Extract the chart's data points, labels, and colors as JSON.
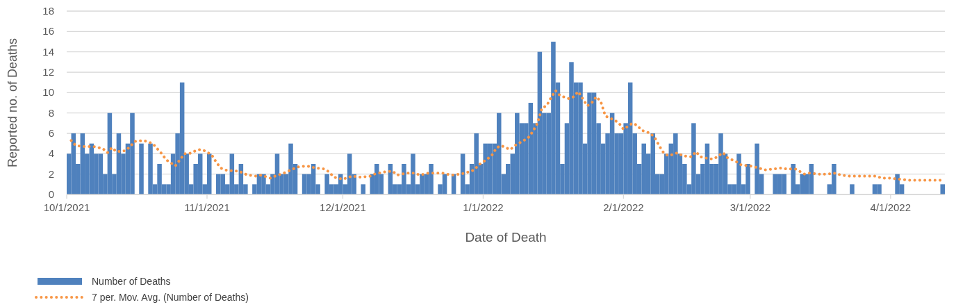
{
  "chart_data": {
    "type": "bar",
    "xlabel": "Date of Death",
    "ylabel": "Reported no. of Deaths",
    "xlim": [
      "2021-10-01",
      "2022-04-13"
    ],
    "xticks": [
      {
        "value": "2021-10-01",
        "label": "10/1/2021"
      },
      {
        "value": "2021-11-01",
        "label": "11/1/2021"
      },
      {
        "value": "2021-12-01",
        "label": "12/1/2021"
      },
      {
        "value": "2022-01-01",
        "label": "1/1/2022"
      },
      {
        "value": "2022-02-01",
        "label": "2/1/2022"
      },
      {
        "value": "2022-03-01",
        "label": "3/1/2022"
      },
      {
        "value": "2022-04-01",
        "label": "4/1/2022"
      }
    ],
    "ylim": [
      0,
      18
    ],
    "yticks": [
      0,
      2,
      4,
      6,
      8,
      10,
      12,
      14,
      16,
      18
    ],
    "grid": "y",
    "legend": "bottom",
    "series": [
      {
        "name": "Number of Deaths",
        "type": "bar",
        "color": "#4f81bd",
        "x": [
          "2021-10-01",
          "2021-10-02",
          "2021-10-03",
          "2021-10-04",
          "2021-10-05",
          "2021-10-06",
          "2021-10-07",
          "2021-10-08",
          "2021-10-09",
          "2021-10-10",
          "2021-10-11",
          "2021-10-12",
          "2021-10-13",
          "2021-10-14",
          "2021-10-15",
          "2021-10-16",
          "2021-10-17",
          "2021-10-18",
          "2021-10-19",
          "2021-10-20",
          "2021-10-21",
          "2021-10-22",
          "2021-10-23",
          "2021-10-24",
          "2021-10-25",
          "2021-10-26",
          "2021-10-27",
          "2021-10-28",
          "2021-10-29",
          "2021-10-30",
          "2021-10-31",
          "2021-11-01",
          "2021-11-02",
          "2021-11-03",
          "2021-11-04",
          "2021-11-05",
          "2021-11-06",
          "2021-11-07",
          "2021-11-08",
          "2021-11-09",
          "2021-11-10",
          "2021-11-11",
          "2021-11-12",
          "2021-11-13",
          "2021-11-14",
          "2021-11-15",
          "2021-11-16",
          "2021-11-17",
          "2021-11-18",
          "2021-11-19",
          "2021-11-20",
          "2021-11-21",
          "2021-11-22",
          "2021-11-23",
          "2021-11-24",
          "2021-11-25",
          "2021-11-26",
          "2021-11-27",
          "2021-11-28",
          "2021-11-29",
          "2021-11-30",
          "2021-12-01",
          "2021-12-02",
          "2021-12-03",
          "2021-12-04",
          "2021-12-05",
          "2021-12-06",
          "2021-12-07",
          "2021-12-08",
          "2021-12-09",
          "2021-12-10",
          "2021-12-11",
          "2021-12-12",
          "2021-12-13",
          "2021-12-14",
          "2021-12-15",
          "2021-12-16",
          "2021-12-17",
          "2021-12-18",
          "2021-12-19",
          "2021-12-20",
          "2021-12-21",
          "2021-12-22",
          "2021-12-23",
          "2021-12-24",
          "2021-12-25",
          "2021-12-26",
          "2021-12-27",
          "2021-12-28",
          "2021-12-29",
          "2021-12-30",
          "2021-12-31",
          "2022-01-01",
          "2022-01-02",
          "2022-01-03",
          "2022-01-04",
          "2022-01-05",
          "2022-01-06",
          "2022-01-07",
          "2022-01-08",
          "2022-01-09",
          "2022-01-10",
          "2022-01-11",
          "2022-01-12",
          "2022-01-13",
          "2022-01-14",
          "2022-01-15",
          "2022-01-16",
          "2022-01-17",
          "2022-01-18",
          "2022-01-19",
          "2022-01-20",
          "2022-01-21",
          "2022-01-22",
          "2022-01-23",
          "2022-01-24",
          "2022-01-25",
          "2022-01-26",
          "2022-01-27",
          "2022-01-28",
          "2022-01-29",
          "2022-01-30",
          "2022-01-31",
          "2022-02-01",
          "2022-02-02",
          "2022-02-03",
          "2022-02-04",
          "2022-02-05",
          "2022-02-06",
          "2022-02-07",
          "2022-02-08",
          "2022-02-09",
          "2022-02-10",
          "2022-02-11",
          "2022-02-12",
          "2022-02-13",
          "2022-02-14",
          "2022-02-15",
          "2022-02-16",
          "2022-02-17",
          "2022-02-18",
          "2022-02-19",
          "2022-02-20",
          "2022-02-21",
          "2022-02-22",
          "2022-02-23",
          "2022-02-24",
          "2022-02-25",
          "2022-02-26",
          "2022-02-27",
          "2022-02-28",
          "2022-03-01",
          "2022-03-02",
          "2022-03-03",
          "2022-03-04",
          "2022-03-05",
          "2022-03-06",
          "2022-03-07",
          "2022-03-08",
          "2022-03-09",
          "2022-03-10",
          "2022-03-11",
          "2022-03-12",
          "2022-03-13",
          "2022-03-14",
          "2022-03-15",
          "2022-03-16",
          "2022-03-17",
          "2022-03-18",
          "2022-03-19",
          "2022-03-20",
          "2022-03-21",
          "2022-03-22",
          "2022-03-23",
          "2022-03-24",
          "2022-03-25",
          "2022-03-26",
          "2022-03-27",
          "2022-03-28",
          "2022-03-29",
          "2022-03-30",
          "2022-03-31",
          "2022-04-01",
          "2022-04-02",
          "2022-04-03",
          "2022-04-04",
          "2022-04-05",
          "2022-04-06",
          "2022-04-07",
          "2022-04-08",
          "2022-04-09",
          "2022-04-10",
          "2022-04-11",
          "2022-04-12"
        ],
        "values": [
          4,
          6,
          3,
          6,
          4,
          5,
          4,
          4,
          2,
          8,
          2,
          6,
          4,
          5,
          8,
          0,
          5,
          0,
          5,
          1,
          3,
          1,
          1,
          4,
          6,
          11,
          4,
          1,
          3,
          4,
          1,
          4,
          0,
          2,
          2,
          1,
          4,
          1,
          3,
          1,
          0,
          1,
          2,
          2,
          1,
          2,
          4,
          2,
          2,
          5,
          3,
          0,
          2,
          2,
          3,
          1,
          0,
          2,
          1,
          1,
          2,
          1,
          4,
          2,
          0,
          1,
          0,
          2,
          3,
          2,
          0,
          3,
          1,
          1,
          3,
          1,
          4,
          1,
          2,
          2,
          3,
          0,
          1,
          2,
          0,
          2,
          0,
          4,
          1,
          3,
          6,
          3,
          5,
          5,
          5,
          8,
          2,
          3,
          4,
          8,
          7,
          7,
          9,
          7,
          14,
          8,
          8,
          15,
          11,
          3,
          7,
          13,
          11,
          11,
          5,
          10,
          10,
          7,
          5,
          6,
          8,
          6,
          6,
          7,
          11,
          6,
          3,
          5,
          4,
          6,
          2,
          2,
          4,
          5,
          6,
          4,
          3,
          1,
          7,
          2,
          3,
          5,
          3,
          3,
          6,
          4,
          1,
          1,
          4,
          1,
          3,
          0,
          5,
          2,
          0,
          0,
          2,
          2,
          2,
          0,
          3,
          1,
          2,
          2,
          3,
          0,
          0,
          0,
          1,
          3,
          0,
          0,
          0,
          1,
          0,
          0,
          0,
          0,
          1,
          1,
          0,
          0,
          0,
          2,
          1,
          0,
          0,
          0,
          0,
          0,
          0,
          0,
          0,
          1
        ]
      },
      {
        "name": "7 per. Mov. Avg. (Number of Deaths)",
        "type": "line",
        "color": "#f79646",
        "line_style": "dotted",
        "x": [
          "2021-10-02",
          "2021-10-03",
          "2021-10-05",
          "2021-10-07",
          "2021-10-09",
          "2021-10-10",
          "2021-10-11",
          "2021-10-12",
          "2021-10-14",
          "2021-10-15",
          "2021-10-16",
          "2021-10-18",
          "2021-10-20",
          "2021-10-21",
          "2021-10-22",
          "2021-10-23",
          "2021-10-25",
          "2021-10-26",
          "2021-10-27",
          "2021-10-28",
          "2021-10-30",
          "2021-10-31",
          "2021-11-02",
          "2021-11-03",
          "2021-11-04",
          "2021-11-05",
          "2021-11-07",
          "2021-11-08",
          "2021-11-10",
          "2021-11-12",
          "2021-11-13",
          "2021-11-15",
          "2021-11-16",
          "2021-11-18",
          "2021-11-20",
          "2021-11-21",
          "2021-11-23",
          "2021-11-25",
          "2021-11-27",
          "2021-11-28",
          "2021-11-29",
          "2021-12-01",
          "2021-12-03",
          "2021-12-05",
          "2021-12-07",
          "2021-12-08",
          "2021-12-10",
          "2021-12-12",
          "2021-12-13",
          "2021-12-15",
          "2021-12-17",
          "2021-12-18",
          "2021-12-20",
          "2021-12-22",
          "2021-12-23",
          "2021-12-25",
          "2021-12-27",
          "2021-12-28",
          "2021-12-30",
          "2021-12-31",
          "2022-01-02",
          "2022-01-03",
          "2022-01-04",
          "2022-01-05",
          "2022-01-07",
          "2022-01-08",
          "2022-01-10",
          "2022-01-11",
          "2022-01-12",
          "2022-01-13",
          "2022-01-14",
          "2022-01-15",
          "2022-01-16",
          "2022-01-17",
          "2022-01-18",
          "2022-01-20",
          "2022-01-21",
          "2022-01-22",
          "2022-01-23",
          "2022-01-24",
          "2022-01-25",
          "2022-01-26",
          "2022-01-27",
          "2022-01-28",
          "2022-01-30",
          "2022-01-31",
          "2022-02-01",
          "2022-02-03",
          "2022-02-04",
          "2022-02-05",
          "2022-02-07",
          "2022-02-08",
          "2022-02-09",
          "2022-02-10",
          "2022-02-11",
          "2022-02-13",
          "2022-02-14",
          "2022-02-16",
          "2022-02-17",
          "2022-02-18",
          "2022-02-20",
          "2022-02-21",
          "2022-02-23",
          "2022-02-24",
          "2022-02-26",
          "2022-02-27",
          "2022-03-01",
          "2022-03-03",
          "2022-03-04",
          "2022-03-06",
          "2022-03-08",
          "2022-03-09",
          "2022-03-11",
          "2022-03-13",
          "2022-03-14",
          "2022-03-16",
          "2022-03-18",
          "2022-03-20",
          "2022-03-21",
          "2022-03-23",
          "2022-03-25",
          "2022-03-27",
          "2022-03-29",
          "2022-03-30",
          "2022-04-01",
          "2022-04-03",
          "2022-04-05",
          "2022-04-06",
          "2022-04-08",
          "2022-04-10",
          "2022-04-12"
        ],
        "values": [
          5.3,
          4.8,
          4.7,
          4.7,
          4.5,
          4.1,
          4.6,
          4.2,
          4.3,
          4.7,
          5.2,
          5.3,
          5.0,
          4.5,
          4.0,
          3.4,
          2.8,
          3.4,
          4.0,
          4.0,
          4.4,
          4.4,
          3.9,
          3.2,
          2.6,
          2.4,
          2.3,
          2.3,
          1.9,
          1.8,
          1.9,
          1.6,
          1.8,
          2.1,
          2.5,
          2.7,
          2.8,
          2.6,
          2.5,
          2.2,
          1.7,
          1.5,
          1.8,
          1.7,
          1.8,
          2.0,
          2.2,
          2.3,
          1.9,
          2.1,
          2.1,
          1.9,
          2.1,
          2.1,
          2.1,
          1.9,
          2.0,
          2.1,
          2.4,
          2.9,
          3.5,
          3.9,
          4.6,
          4.8,
          4.4,
          4.8,
          5.3,
          5.6,
          6.2,
          7.0,
          8.5,
          8.7,
          9.5,
          10.2,
          9.7,
          9.4,
          9.6,
          10.1,
          9.4,
          8.7,
          9.0,
          9.6,
          9.1,
          7.7,
          7.3,
          7.0,
          6.4,
          7.0,
          6.8,
          6.3,
          6.0,
          5.5,
          4.7,
          4.0,
          3.8,
          4.1,
          3.8,
          3.7,
          4.2,
          3.7,
          3.5,
          3.5,
          4.1,
          3.6,
          3.2,
          2.9,
          2.8,
          2.6,
          2.4,
          2.5,
          2.6,
          2.5,
          2.5,
          2.0,
          2.1,
          2.0,
          2.0,
          2.1,
          1.9,
          1.8,
          1.8,
          1.8,
          1.8,
          1.6,
          1.6,
          1.5,
          1.4,
          1.4,
          1.4,
          1.4,
          1.4
        ]
      }
    ]
  }
}
